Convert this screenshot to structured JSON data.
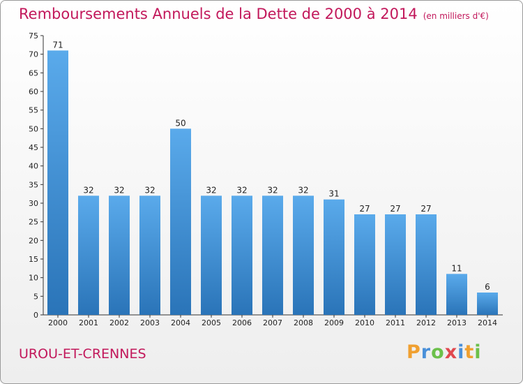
{
  "header": {
    "title": "Remboursements Annuels de la Dette de 2000 à 2014",
    "subtitle": "(en milliers d'€)"
  },
  "footer": {
    "commune": "UROU-ET-CRENNES",
    "logo": {
      "p": "P",
      "r": "r",
      "o": "o",
      "x": "x",
      "i1": "i",
      "t": "t",
      "i2": "i"
    }
  },
  "colors": {
    "title": "#c2185b",
    "bar_top": "#5aaaeb",
    "bar_bottom": "#2a74b8"
  },
  "chart_data": {
    "type": "bar",
    "title": "Remboursements Annuels de la Dette de 2000 à 2014",
    "subtitle": "(en milliers d'€)",
    "categories": [
      "2000",
      "2001",
      "2002",
      "2003",
      "2004",
      "2005",
      "2006",
      "2007",
      "2008",
      "2009",
      "2010",
      "2011",
      "2012",
      "2013",
      "2014"
    ],
    "values": [
      71,
      32,
      32,
      32,
      50,
      32,
      32,
      32,
      32,
      31,
      27,
      27,
      27,
      11,
      6
    ],
    "ylim": [
      0,
      75
    ],
    "yticks": [
      0,
      5,
      10,
      15,
      20,
      25,
      30,
      35,
      40,
      45,
      50,
      55,
      60,
      65,
      70,
      75
    ],
    "grid": false,
    "legend": "none"
  }
}
